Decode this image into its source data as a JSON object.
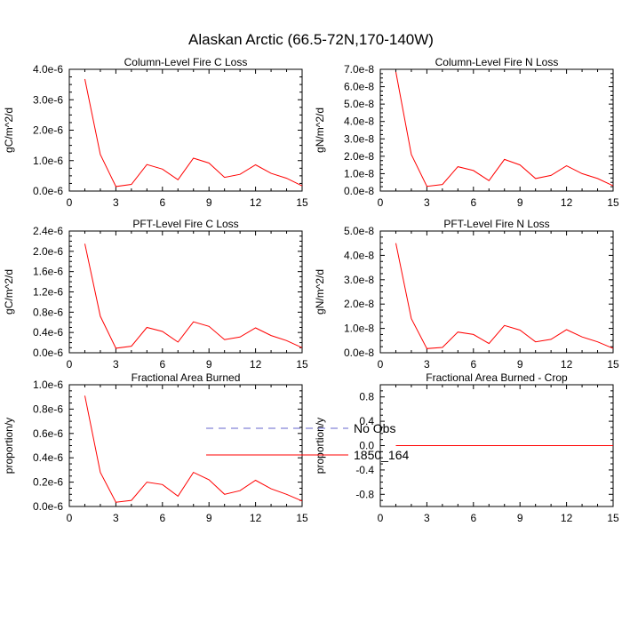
{
  "title": "Alaskan Arctic (66.5-72N,170-140W)",
  "colors": {
    "series": "#ff0000",
    "obs": "#6666cc",
    "axis": "#000000",
    "background": "#ffffff"
  },
  "legend": {
    "placement": "bottom-center",
    "entries": [
      {
        "label": "No Obs",
        "style": "dashed",
        "color": "#6666cc"
      },
      {
        "label": "1850_164",
        "style": "solid",
        "color": "#ff0000"
      }
    ]
  },
  "chart_data": [
    {
      "type": "line",
      "title": "Column-Level Fire C Loss",
      "ylabel": "gC/m^2/d",
      "xlim": [
        0,
        15
      ],
      "ylim": [
        0,
        4e-06
      ],
      "xticks": [
        0,
        3,
        6,
        9,
        12,
        15
      ],
      "xtick_labels": [
        "0",
        "3",
        "6",
        "9",
        "12",
        "15"
      ],
      "yticks": [
        0,
        1e-06,
        2e-06,
        3e-06,
        4e-06
      ],
      "ytick_labels": [
        "0.0e-6",
        "1.0e-6",
        "2.0e-6",
        "3.0e-6",
        "4.0e-6"
      ],
      "x": [
        1,
        2,
        3,
        4,
        5,
        6,
        7,
        8,
        9,
        10,
        11,
        12,
        13,
        14,
        15
      ],
      "series": [
        {
          "name": "1850_164",
          "values": [
            3.68e-06,
            1.2e-06,
            1.5e-07,
            2.2e-07,
            8.7e-07,
            7.2e-07,
            3.7e-07,
            1.08e-06,
            9.2e-07,
            4.5e-07,
            5.5e-07,
            8.6e-07,
            5.8e-07,
            4.2e-07,
            1.7e-07
          ]
        }
      ]
    },
    {
      "type": "line",
      "title": "Column-Level Fire N Loss",
      "ylabel": "gN/m^2/d",
      "xlim": [
        0,
        15
      ],
      "ylim": [
        0,
        7e-08
      ],
      "xticks": [
        0,
        3,
        6,
        9,
        12,
        15
      ],
      "xtick_labels": [
        "0",
        "3",
        "6",
        "9",
        "12",
        "15"
      ],
      "yticks": [
        0,
        1e-08,
        2e-08,
        3e-08,
        4e-08,
        5e-08,
        6e-08,
        7e-08
      ],
      "ytick_labels": [
        "0.0e-8",
        "1.0e-8",
        "2.0e-8",
        "3.0e-8",
        "4.0e-8",
        "5.0e-8",
        "6.0e-8",
        "7.0e-8"
      ],
      "x": [
        1,
        2,
        3,
        4,
        5,
        6,
        7,
        8,
        9,
        10,
        11,
        12,
        13,
        14,
        15
      ],
      "series": [
        {
          "name": "1850_164",
          "values": [
            6.85e-08,
            2.1e-08,
            2.7e-09,
            3.8e-09,
            1.4e-08,
            1.18e-08,
            6e-09,
            1.82e-08,
            1.5e-08,
            7.2e-09,
            9e-09,
            1.45e-08,
            1e-08,
            7.2e-09,
            3e-09
          ]
        }
      ]
    },
    {
      "type": "line",
      "title": "PFT-Level Fire C Loss",
      "ylabel": "gC/m^2/d",
      "xlim": [
        0,
        15
      ],
      "ylim": [
        0,
        2.4e-06
      ],
      "xticks": [
        0,
        3,
        6,
        9,
        12,
        15
      ],
      "xtick_labels": [
        "0",
        "3",
        "6",
        "9",
        "12",
        "15"
      ],
      "yticks": [
        0,
        4e-07,
        8e-07,
        1.2e-06,
        1.6e-06,
        2e-06,
        2.4e-06
      ],
      "ytick_labels": [
        "0.0e-6",
        "0.4e-6",
        "0.8e-6",
        "1.2e-6",
        "1.6e-6",
        "2.0e-6",
        "2.4e-6"
      ],
      "x": [
        1,
        2,
        3,
        4,
        5,
        6,
        7,
        8,
        9,
        10,
        11,
        12,
        13,
        14,
        15
      ],
      "series": [
        {
          "name": "1850_164",
          "values": [
            2.15e-06,
            7.2e-07,
            9e-08,
            1.3e-07,
            5e-07,
            4.2e-07,
            2.1e-07,
            6.1e-07,
            5.2e-07,
            2.6e-07,
            3.1e-07,
            4.9e-07,
            3.4e-07,
            2.4e-07,
            1e-07
          ]
        }
      ]
    },
    {
      "type": "line",
      "title": "PFT-Level Fire N Loss",
      "ylabel": "gN/m^2/d",
      "xlim": [
        0,
        15
      ],
      "ylim": [
        0,
        5e-08
      ],
      "xticks": [
        0,
        3,
        6,
        9,
        12,
        15
      ],
      "xtick_labels": [
        "0",
        "3",
        "6",
        "9",
        "12",
        "15"
      ],
      "yticks": [
        0,
        1e-08,
        2e-08,
        3e-08,
        4e-08,
        5e-08
      ],
      "ytick_labels": [
        "0.0e-8",
        "1.0e-8",
        "2.0e-8",
        "3.0e-8",
        "4.0e-8",
        "5.0e-8"
      ],
      "x": [
        1,
        2,
        3,
        4,
        5,
        6,
        7,
        8,
        9,
        10,
        11,
        12,
        13,
        14,
        15
      ],
      "series": [
        {
          "name": "1850_164",
          "values": [
            4.5e-08,
            1.4e-08,
            1.7e-09,
            2.2e-09,
            8.5e-09,
            7.5e-09,
            3.8e-09,
            1.12e-08,
            9.3e-09,
            4.5e-09,
            5.5e-09,
            9.5e-09,
            6.5e-09,
            4.5e-09,
            1.8e-09
          ]
        }
      ]
    },
    {
      "type": "line",
      "title": "Fractional Area Burned",
      "ylabel": "proportion/y",
      "xlim": [
        0,
        15
      ],
      "ylim": [
        0,
        1e-06
      ],
      "xticks": [
        0,
        3,
        6,
        9,
        12,
        15
      ],
      "xtick_labels": [
        "0",
        "3",
        "6",
        "9",
        "12",
        "15"
      ],
      "yticks": [
        0,
        2e-07,
        4e-07,
        6e-07,
        8e-07,
        1e-06
      ],
      "ytick_labels": [
        "0.0e-6",
        "0.2e-6",
        "0.4e-6",
        "0.6e-6",
        "0.8e-6",
        "1.0e-6"
      ],
      "x": [
        1,
        2,
        3,
        4,
        5,
        6,
        7,
        8,
        9,
        10,
        11,
        12,
        13,
        14,
        15
      ],
      "series": [
        {
          "name": "1850_164",
          "values": [
            9.1e-07,
            2.8e-07,
            3.5e-08,
            5e-08,
            2e-07,
            1.8e-07,
            8.5e-08,
            2.8e-07,
            2.2e-07,
            1e-07,
            1.3e-07,
            2.15e-07,
            1.45e-07,
            1e-07,
            4.5e-08
          ]
        }
      ]
    },
    {
      "type": "line",
      "title": "Fractional Area Burned - Crop",
      "ylabel": "proportion/y",
      "xlim": [
        0,
        15
      ],
      "ylim": [
        -1.0,
        1.0
      ],
      "xticks": [
        0,
        3,
        6,
        9,
        12,
        15
      ],
      "xtick_labels": [
        "0",
        "3",
        "6",
        "9",
        "12",
        "15"
      ],
      "yticks": [
        -0.8,
        -0.4,
        0.0,
        0.4,
        0.8
      ],
      "ytick_labels": [
        "-0.8",
        "-0.4",
        "0.0",
        "0.4",
        "0.8"
      ],
      "x": [
        1,
        2,
        3,
        4,
        5,
        6,
        7,
        8,
        9,
        10,
        11,
        12,
        13,
        14,
        15
      ],
      "series": [
        {
          "name": "1850_164",
          "values": [
            0,
            0,
            0,
            0,
            0,
            0,
            0,
            0,
            0,
            0,
            0,
            0,
            0,
            0,
            0
          ]
        }
      ]
    }
  ]
}
